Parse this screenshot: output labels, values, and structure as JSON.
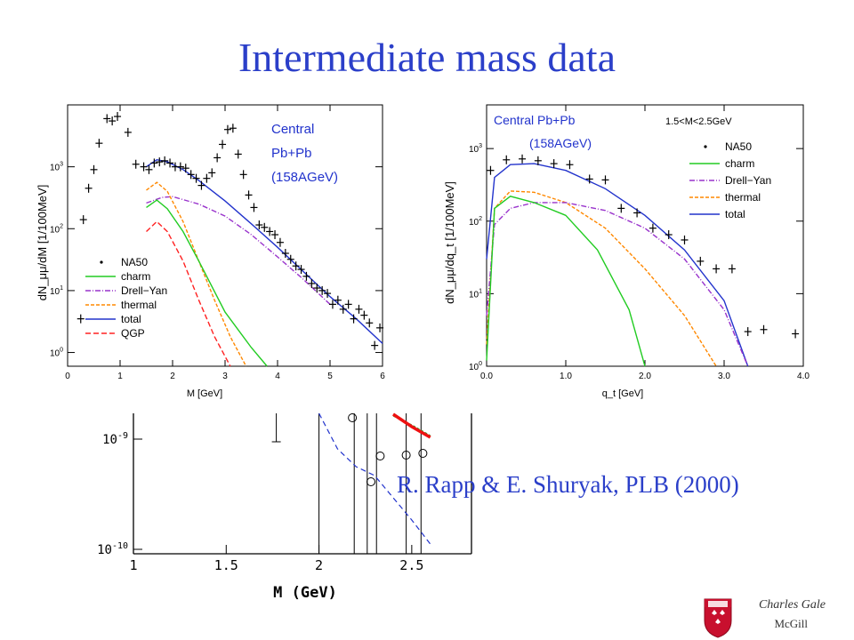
{
  "slide": {
    "title": "Intermediate mass data",
    "citation": "R. Rapp & E. Shuryak, PLB (2000)",
    "footer_author": "Charles Gale",
    "footer_institution": "McGill"
  },
  "colors": {
    "title": "#2b3fc9",
    "NA50": "#000000",
    "charm": "#22cc22",
    "Drell-Yan": "#9933cc",
    "thermal": "#ff8800",
    "total": "#2233cc",
    "QGP": "#ff2222"
  },
  "chart_data": [
    {
      "type": "scatter",
      "xlabel": "M [GeV]",
      "ylabel": "dN_μμ/dM [1/100MeV]",
      "xlim": [
        0,
        6
      ],
      "ylim": [
        0.6,
        10000
      ],
      "yscale": "log",
      "xticks": [
        0,
        1,
        2,
        3,
        4,
        5,
        6
      ],
      "yticks": [
        "10^0",
        "10^1",
        "10^2",
        "10^3"
      ],
      "annotation": [
        "Central",
        "Pb+Pb",
        "(158AGeV)"
      ],
      "legend": [
        "NA50",
        "charm",
        "Drell−Yan",
        "thermal",
        "total",
        "QGP"
      ],
      "legend_position": "bottom-left",
      "points": [
        [
          0.25,
          3.5
        ],
        [
          0.3,
          140
        ],
        [
          0.4,
          450
        ],
        [
          0.5,
          900
        ],
        [
          0.6,
          2400
        ],
        [
          0.75,
          6000
        ],
        [
          0.85,
          5500
        ],
        [
          0.95,
          6500
        ],
        [
          1.15,
          3600
        ],
        [
          1.3,
          1100
        ],
        [
          1.45,
          1000
        ],
        [
          1.55,
          900
        ],
        [
          1.65,
          1150
        ],
        [
          1.75,
          1200
        ],
        [
          1.85,
          1250
        ],
        [
          1.95,
          1150
        ],
        [
          2.05,
          1000
        ],
        [
          2.15,
          1000
        ],
        [
          2.25,
          950
        ],
        [
          2.35,
          750
        ],
        [
          2.45,
          650
        ],
        [
          2.55,
          500
        ],
        [
          2.65,
          650
        ],
        [
          2.75,
          800
        ],
        [
          2.85,
          1400
        ],
        [
          2.95,
          2300
        ],
        [
          3.05,
          4000
        ],
        [
          3.15,
          4200
        ],
        [
          3.25,
          1600
        ],
        [
          3.35,
          750
        ],
        [
          3.45,
          350
        ],
        [
          3.55,
          220
        ],
        [
          3.65,
          115
        ],
        [
          3.75,
          105
        ],
        [
          3.85,
          90
        ],
        [
          3.95,
          80
        ],
        [
          4.05,
          60
        ],
        [
          4.15,
          40
        ],
        [
          4.25,
          32
        ],
        [
          4.35,
          25
        ],
        [
          4.45,
          22
        ],
        [
          4.55,
          17
        ],
        [
          4.65,
          13
        ],
        [
          4.75,
          11
        ],
        [
          4.85,
          10
        ],
        [
          4.95,
          9
        ],
        [
          5.05,
          6
        ],
        [
          5.15,
          7
        ],
        [
          5.25,
          5
        ],
        [
          5.35,
          6
        ],
        [
          5.45,
          3.5
        ],
        [
          5.55,
          5
        ],
        [
          5.65,
          4
        ],
        [
          5.75,
          3
        ],
        [
          5.85,
          1.3
        ],
        [
          5.95,
          2.5
        ]
      ],
      "series": [
        {
          "name": "total",
          "x": [
            1.5,
            1.7,
            1.9,
            2.2,
            2.5,
            3,
            3.5,
            4,
            4.5,
            5,
            5.5,
            6
          ],
          "y": [
            1000,
            1300,
            1200,
            900,
            600,
            280,
            120,
            50,
            20,
            8,
            3.5,
            1.4
          ]
        },
        {
          "name": "Drell−Yan",
          "x": [
            1.5,
            1.8,
            2.0,
            2.5,
            3,
            3.5,
            4,
            4.5,
            5
          ],
          "y": [
            260,
            320,
            330,
            250,
            160,
            80,
            35,
            15,
            6
          ]
        },
        {
          "name": "thermal",
          "x": [
            1.5,
            1.7,
            1.9,
            2.2,
            2.5,
            2.8,
            3.1,
            3.4
          ],
          "y": [
            420,
            560,
            400,
            130,
            30,
            7,
            1.8,
            0.6
          ]
        },
        {
          "name": "charm",
          "x": [
            1.5,
            1.7,
            1.9,
            2.2,
            2.5,
            3,
            3.5,
            3.8
          ],
          "y": [
            220,
            290,
            210,
            90,
            30,
            4.5,
            1.2,
            0.6
          ]
        },
        {
          "name": "QGP",
          "x": [
            1.5,
            1.7,
            1.9,
            2.2,
            2.5,
            2.8,
            3.1
          ],
          "y": [
            90,
            130,
            90,
            30,
            7,
            1.8,
            0.6
          ]
        }
      ]
    },
    {
      "type": "scatter",
      "xlabel": "q_t [GeV]",
      "ylabel": "dN_μμ/dq_t [1/100MeV]",
      "xlim": [
        0,
        4
      ],
      "ylim": [
        1,
        4000
      ],
      "yscale": "log",
      "xticks": [
        "0.0",
        "1.0",
        "2.0",
        "3.0",
        "4.0"
      ],
      "yticks": [
        "10^0",
        "10^1",
        "10^2",
        "10^3"
      ],
      "annotation": [
        "Central Pb+Pb",
        "(158AGeV)",
        "1.5<M<2.5GeV"
      ],
      "legend": [
        "NA50",
        "charm",
        "Drell−Yan",
        "thermal",
        "total"
      ],
      "legend_position": "top-right",
      "points": [
        [
          0.05,
          500
        ],
        [
          0.25,
          700
        ],
        [
          0.45,
          720
        ],
        [
          0.65,
          680
        ],
        [
          0.85,
          620
        ],
        [
          1.05,
          600
        ],
        [
          1.3,
          380
        ],
        [
          1.5,
          370
        ],
        [
          1.7,
          150
        ],
        [
          1.9,
          130
        ],
        [
          2.1,
          80
        ],
        [
          2.3,
          65
        ],
        [
          2.5,
          55
        ],
        [
          2.7,
          28
        ],
        [
          2.9,
          22
        ],
        [
          3.1,
          22
        ],
        [
          3.3,
          3
        ],
        [
          3.5,
          3.2
        ],
        [
          3.9,
          2.8
        ]
      ],
      "series": [
        {
          "name": "total",
          "x": [
            0.0,
            0.1,
            0.3,
            0.6,
            1.0,
            1.5,
            2.0,
            2.5,
            3.0,
            3.3
          ],
          "y": [
            30,
            400,
            600,
            620,
            500,
            280,
            120,
            40,
            8,
            1
          ]
        },
        {
          "name": "thermal",
          "x": [
            0.0,
            0.1,
            0.3,
            0.6,
            1.0,
            1.5,
            2.0,
            2.5,
            2.9
          ],
          "y": [
            2,
            150,
            260,
            250,
            180,
            80,
            22,
            5,
            1
          ]
        },
        {
          "name": "Drell−Yan",
          "x": [
            0.0,
            0.1,
            0.3,
            0.6,
            1.0,
            1.5,
            2.0,
            2.5,
            3.0,
            3.3
          ],
          "y": [
            5,
            90,
            150,
            180,
            180,
            140,
            80,
            30,
            6,
            1
          ]
        },
        {
          "name": "charm",
          "x": [
            0.0,
            0.1,
            0.3,
            0.6,
            1.0,
            1.4,
            1.8,
            2.0
          ],
          "y": [
            1.2,
            150,
            220,
            180,
            120,
            40,
            6,
            1
          ]
        }
      ]
    },
    {
      "type": "scatter",
      "xlabel": "M (GeV)",
      "xlim": [
        1,
        2.75
      ],
      "yscale": "log",
      "xticks": [
        "1",
        "1.5",
        "2",
        "2.5"
      ],
      "yticks": [
        "10^-9",
        "10^-10"
      ]
    }
  ]
}
